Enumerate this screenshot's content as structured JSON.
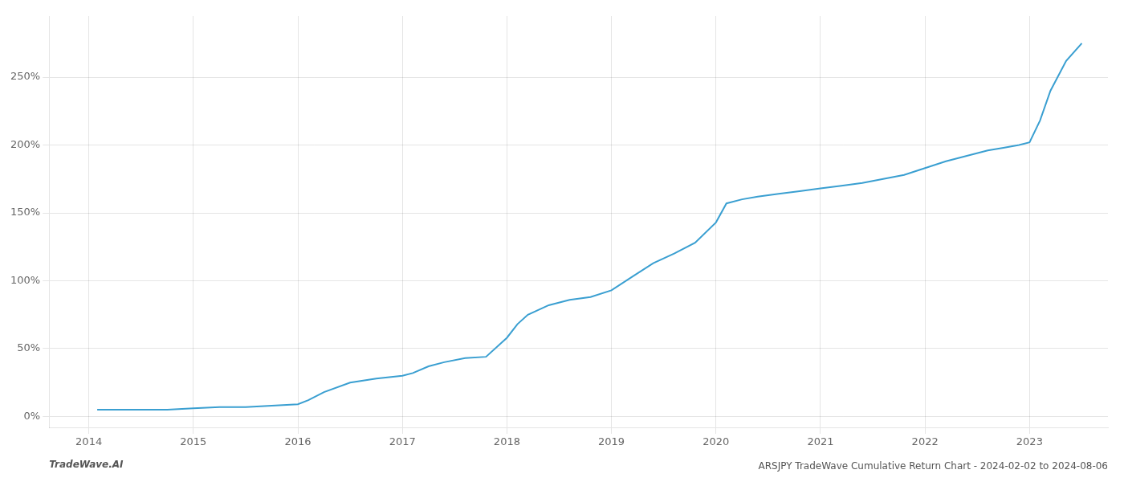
{
  "chart_data": {
    "type": "line",
    "title": "ARSJPY TradeWave Cumulative Return Chart - 2024-02-02 to 2024-08-06",
    "annotations": [
      "TradeWave.AI"
    ],
    "color": "#3a9fd1",
    "grid": true,
    "x": [
      2014.08,
      2014.25,
      2014.5,
      2014.75,
      2015.0,
      2015.25,
      2015.5,
      2015.75,
      2016.0,
      2016.1,
      2016.25,
      2016.5,
      2016.75,
      2017.0,
      2017.1,
      2017.25,
      2017.4,
      2017.6,
      2017.8,
      2018.0,
      2018.1,
      2018.2,
      2018.4,
      2018.6,
      2018.8,
      2019.0,
      2019.2,
      2019.4,
      2019.6,
      2019.8,
      2020.0,
      2020.1,
      2020.25,
      2020.4,
      2020.6,
      2020.8,
      2021.0,
      2021.2,
      2021.4,
      2021.6,
      2021.8,
      2022.0,
      2022.2,
      2022.4,
      2022.6,
      2022.75,
      2022.9,
      2023.0,
      2023.1,
      2023.2,
      2023.35,
      2023.5
    ],
    "values": [
      5,
      5,
      5,
      5,
      6,
      7,
      7,
      8,
      9,
      12,
      18,
      25,
      28,
      30,
      32,
      37,
      40,
      43,
      44,
      58,
      68,
      75,
      82,
      86,
      88,
      93,
      103,
      113,
      120,
      128,
      143,
      157,
      160,
      162,
      164,
      166,
      168,
      170,
      172,
      175,
      178,
      183,
      188,
      192,
      196,
      198,
      200,
      202,
      218,
      240,
      262,
      275
    ],
    "xlim": [
      2013.62,
      2023.75
    ],
    "xticks": [
      2014,
      2015,
      2016,
      2017,
      2018,
      2019,
      2020,
      2021,
      2022,
      2023
    ],
    "ylim": [
      -8,
      295
    ],
    "yticks": [
      {
        "value": 0,
        "label": "0%"
      },
      {
        "value": 50,
        "label": "50%"
      },
      {
        "value": 100,
        "label": "100%"
      },
      {
        "value": 150,
        "label": "150%"
      },
      {
        "value": 200,
        "label": "200%"
      },
      {
        "value": 250,
        "label": "250%"
      }
    ]
  }
}
